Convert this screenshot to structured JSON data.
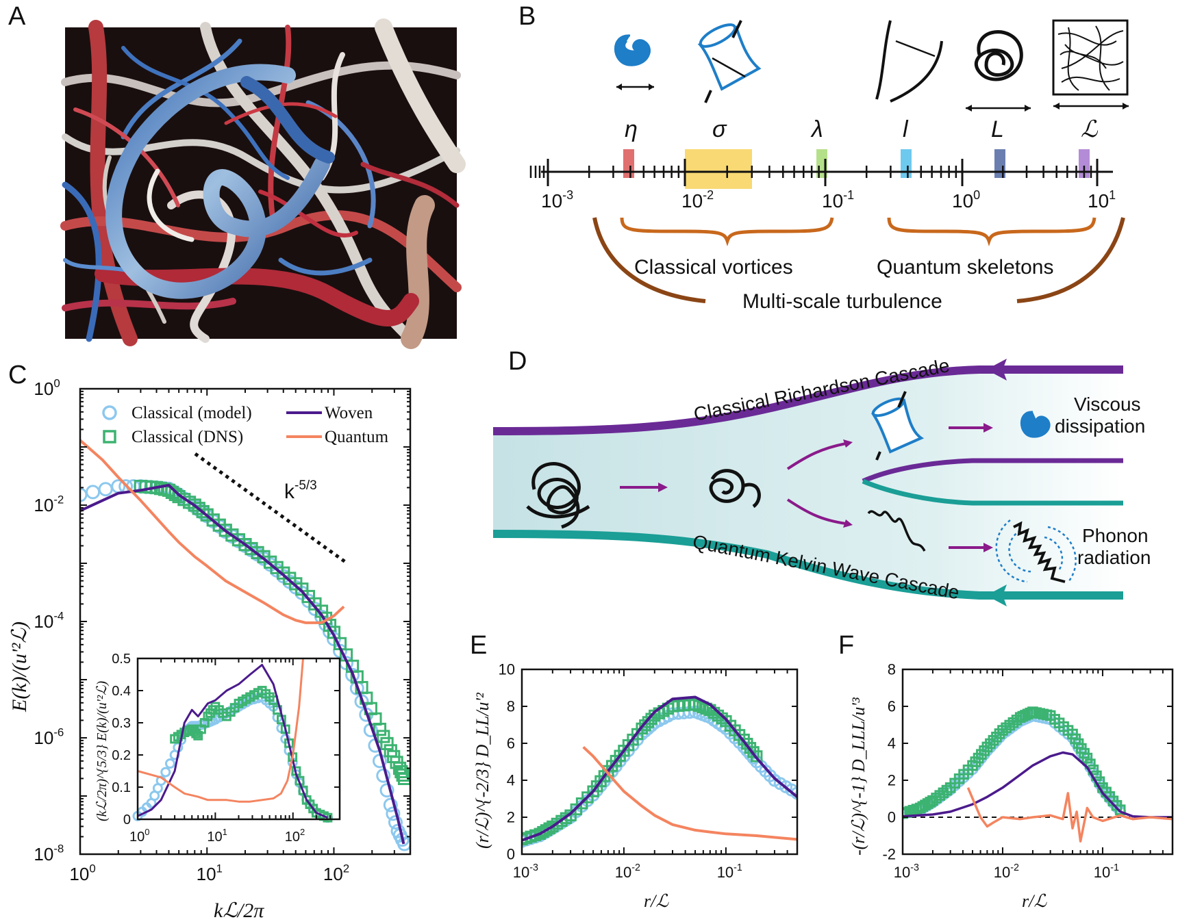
{
  "panels": {
    "A": "A",
    "B": "B",
    "C": "C",
    "D": "D",
    "E": "E",
    "F": "F"
  },
  "scale_diagram": {
    "symbols": [
      "η",
      "σ",
      "λ",
      "l",
      "L",
      "ℒ"
    ],
    "tick_labels": [
      "10",
      "10",
      "10",
      "10",
      "10"
    ],
    "tick_exponents": [
      "-3",
      "-2",
      "-1",
      "0",
      "1"
    ],
    "classical_label": "Classical vortices",
    "quantum_label": "Quantum skeletons",
    "multiscale_label": "Multi-scale turbulence",
    "colors": {
      "eta": "#e07070",
      "sigma": "#f7d25a",
      "lambda": "#b5e08a",
      "l": "#6ec9ee",
      "L": "#6a7fb0",
      "calL": "#b48bd6",
      "brace": "#c8681c",
      "outer_brace": "#8b4515"
    }
  },
  "cascade_diagram": {
    "classical_label": "Classical Richardson Cascade",
    "quantum_label": "Quantum Kelvin Wave Cascade",
    "viscous_1": "Viscous",
    "viscous_2": "dissipation",
    "phonon_1": "Phonon",
    "phonon_2": "radiation",
    "colors": {
      "classical": "#6a2a96",
      "quantum": "#1a9e96",
      "arrow": "#8a1a8a",
      "fill": "#c9e3e6"
    }
  },
  "chart_data": [
    {
      "panel": "C",
      "type": "line",
      "log_x": true,
      "log_y": true,
      "xlabel": "kℒ/2π",
      "ylabel": "E(k)/(u'²ℒ)",
      "xlim": [
        1,
        400
      ],
      "ylim": [
        1e-08,
        1
      ],
      "xticks": [
        "10",
        "10",
        "10"
      ],
      "xtick_exp": [
        "0",
        "1",
        "2"
      ],
      "yticks": [
        "10",
        "10",
        "10",
        "10",
        "10"
      ],
      "ytick_exp": [
        "-8",
        "-6",
        "-4",
        "-2",
        "0"
      ],
      "annotation": "k",
      "annotation_exp": "-5/3",
      "legend": [
        "Classical (model)",
        "Woven",
        "Classical (DNS)",
        "Quantum"
      ],
      "series": [
        {
          "name": "Classical (model)",
          "marker": "circle",
          "color": "#8cc8ee",
          "x": [
            1,
            2,
            3,
            4,
            5,
            6,
            8,
            10,
            14,
            20,
            28,
            40,
            56,
            80,
            100,
            140,
            180,
            230,
            280,
            320,
            360
          ],
          "y": [
            0.015,
            0.021,
            0.021,
            0.02,
            0.019,
            0.015,
            0.0095,
            0.0065,
            0.0035,
            0.002,
            0.0012,
            0.0006,
            0.00031,
            0.00012,
            5e-05,
            1.2e-05,
            2.5e-06,
            4e-07,
            7e-08,
            2.5e-08,
            1.5e-08
          ]
        },
        {
          "name": "Classical (DNS)",
          "marker": "square",
          "color": "#3cb371",
          "x": [
            3,
            4,
            5,
            6,
            8,
            10,
            14,
            20,
            28,
            40,
            56,
            80,
            100,
            140,
            180,
            230,
            280,
            330,
            360
          ],
          "y": [
            0.021,
            0.02,
            0.018,
            0.014,
            0.01,
            0.0068,
            0.0037,
            0.0021,
            0.0013,
            0.00068,
            0.00036,
            0.00015,
            6.5e-05,
            1.7e-05,
            4.8e-06,
            1.4e-06,
            6e-07,
            3e-07,
            2e-07
          ]
        },
        {
          "name": "Woven",
          "marker": "line",
          "color": "#4b1a8c",
          "x": [
            1,
            2,
            3,
            5,
            6,
            8,
            10,
            14,
            20,
            28,
            40,
            56,
            80,
            100,
            140,
            180,
            230,
            280,
            320,
            355
          ],
          "y": [
            0.008,
            0.016,
            0.018,
            0.022,
            0.015,
            0.0098,
            0.0066,
            0.0036,
            0.0021,
            0.0012,
            0.00063,
            0.00033,
            0.00013,
            5.8e-05,
            1.3e-05,
            2.8e-06,
            6e-07,
            1.2e-07,
            4e-08,
            1.5e-08
          ]
        },
        {
          "name": "Quantum",
          "marker": "line",
          "color": "#f4845f",
          "x": [
            1,
            1.5,
            2,
            3,
            4,
            5,
            6,
            8,
            10,
            14,
            20,
            28,
            40,
            50,
            60,
            80,
            100,
            120
          ],
          "y": [
            0.13,
            0.06,
            0.03,
            0.012,
            0.006,
            0.0035,
            0.0023,
            0.0013,
            0.0009,
            0.0005,
            0.00032,
            0.00021,
            0.00013,
            0.000105,
            9.5e-05,
            9.5e-05,
            0.000125,
            0.00018
          ]
        }
      ]
    },
    {
      "panel": "C-inset",
      "type": "line",
      "log_x": true,
      "xlabel": "",
      "ylabel": "(kℒ/2π)^{5/3} E(k)/(u'²ℒ)",
      "xlim": [
        1,
        400
      ],
      "ylim": [
        0,
        0.5
      ],
      "xticks": [
        "10",
        "10",
        "10"
      ],
      "xtick_exp": [
        "0",
        "1",
        "2"
      ],
      "yticks": [
        "0",
        "0.1",
        "0.2",
        "0.3",
        "0.4",
        "0.5"
      ],
      "series": [
        {
          "name": "Classical (model)",
          "marker": "circle",
          "color": "#8cc8ee",
          "x": [
            1,
            1.5,
            2,
            3,
            4,
            5,
            6,
            8,
            10,
            14,
            20,
            28,
            40,
            56,
            80,
            110,
            150,
            200,
            280
          ],
          "y": [
            0.01,
            0.05,
            0.12,
            0.2,
            0.27,
            0.29,
            0.29,
            0.3,
            0.31,
            0.33,
            0.35,
            0.37,
            0.38,
            0.35,
            0.25,
            0.14,
            0.06,
            0.02,
            0.005
          ]
        },
        {
          "name": "Classical (DNS)",
          "marker": "square",
          "color": "#3cb371",
          "x": [
            3,
            4,
            5,
            6,
            8,
            10,
            14,
            20,
            28,
            40,
            56,
            80,
            110,
            150,
            200,
            280
          ],
          "y": [
            0.25,
            0.27,
            0.28,
            0.26,
            0.32,
            0.35,
            0.32,
            0.36,
            0.38,
            0.4,
            0.37,
            0.28,
            0.15,
            0.06,
            0.02,
            0.005
          ]
        },
        {
          "name": "Woven",
          "marker": "line",
          "color": "#4b1a8c",
          "x": [
            1,
            1.5,
            2,
            3,
            4,
            5,
            6,
            8,
            10,
            14,
            20,
            28,
            40,
            56,
            80,
            110,
            150,
            200,
            280
          ],
          "y": [
            0.01,
            0.03,
            0.06,
            0.15,
            0.3,
            0.34,
            0.32,
            0.36,
            0.37,
            0.4,
            0.42,
            0.45,
            0.48,
            0.42,
            0.28,
            0.14,
            0.06,
            0.02,
            0.005
          ]
        },
        {
          "name": "Quantum",
          "marker": "line",
          "color": "#f4845f",
          "x": [
            1,
            2,
            3,
            4,
            6,
            8,
            10,
            14,
            20,
            28,
            40,
            56,
            70,
            85,
            100,
            120,
            135
          ],
          "y": [
            0.15,
            0.13,
            0.1,
            0.08,
            0.07,
            0.06,
            0.06,
            0.06,
            0.055,
            0.055,
            0.06,
            0.065,
            0.08,
            0.12,
            0.2,
            0.35,
            0.5
          ]
        }
      ]
    },
    {
      "panel": "E",
      "type": "line",
      "log_x": true,
      "xlabel": "r/ℒ",
      "ylabel": "(r/ℒ)^{-2/3} D_LL/u'²",
      "xlim": [
        0.001,
        0.5
      ],
      "ylim": [
        0,
        10
      ],
      "xticks": [
        "10",
        "10",
        "10"
      ],
      "xtick_exp": [
        "-3",
        "-2",
        "-1"
      ],
      "yticks": [
        "0",
        "2",
        "4",
        "6",
        "8",
        "10"
      ],
      "series": [
        {
          "name": "Classical (model)",
          "marker": "circle",
          "color": "#8cc8ee",
          "x": [
            0.001,
            0.0015,
            0.002,
            0.003,
            0.005,
            0.007,
            0.01,
            0.015,
            0.02,
            0.03,
            0.05,
            0.07,
            0.1,
            0.15,
            0.2,
            0.3,
            0.5
          ],
          "y": [
            0.7,
            1.0,
            1.4,
            2.0,
            3.2,
            4.2,
            5.3,
            6.5,
            7.1,
            7.6,
            7.7,
            7.4,
            6.8,
            5.8,
            5.0,
            4.0,
            3.3
          ]
        },
        {
          "name": "Classical (DNS)",
          "marker": "square",
          "color": "#3cb371",
          "x": [
            0.001,
            0.0015,
            0.002,
            0.003,
            0.005,
            0.007,
            0.01,
            0.015,
            0.02,
            0.03,
            0.05,
            0.07,
            0.1,
            0.15,
            0.2
          ],
          "y": [
            0.8,
            1.1,
            1.5,
            2.1,
            3.4,
            4.5,
            5.6,
            6.8,
            7.5,
            8.0,
            8.1,
            7.8,
            7.2,
            6.2,
            5.3
          ]
        },
        {
          "name": "Woven",
          "marker": "line",
          "color": "#4b1a8c",
          "x": [
            0.001,
            0.0015,
            0.002,
            0.003,
            0.005,
            0.007,
            0.01,
            0.015,
            0.02,
            0.03,
            0.05,
            0.07,
            0.1,
            0.15,
            0.2,
            0.3,
            0.5
          ],
          "y": [
            0.75,
            1.1,
            1.5,
            2.2,
            3.4,
            4.5,
            5.6,
            6.9,
            7.7,
            8.4,
            8.5,
            8.1,
            7.3,
            6.1,
            5.2,
            4.1,
            3.1
          ]
        },
        {
          "name": "Quantum",
          "marker": "line",
          "color": "#f4845f",
          "x": [
            0.004,
            0.005,
            0.006,
            0.008,
            0.01,
            0.015,
            0.02,
            0.03,
            0.05,
            0.07,
            0.1,
            0.2,
            0.5
          ],
          "y": [
            5.8,
            5.3,
            4.8,
            4.0,
            3.4,
            2.6,
            2.1,
            1.6,
            1.3,
            1.2,
            1.1,
            1.0,
            0.8
          ]
        }
      ]
    },
    {
      "panel": "F",
      "type": "line",
      "log_x": true,
      "xlabel": "r/ℒ",
      "ylabel": "-(r/ℒ)^{-1} D_LLL/u'³",
      "xlim": [
        0.001,
        0.5
      ],
      "ylim": [
        -2,
        8
      ],
      "xticks": [
        "10",
        "10",
        "10"
      ],
      "xtick_exp": [
        "-3",
        "-2",
        "-1"
      ],
      "yticks": [
        "-2",
        "0",
        "2",
        "4",
        "6",
        "8"
      ],
      "series": [
        {
          "name": "Classical (model)",
          "marker": "circle",
          "color": "#8cc8ee",
          "x": [
            0.001,
            0.0015,
            0.002,
            0.003,
            0.005,
            0.007,
            0.01,
            0.015,
            0.02,
            0.03,
            0.05,
            0.07,
            0.1,
            0.15
          ],
          "y": [
            0.2,
            0.4,
            0.8,
            1.5,
            2.6,
            3.6,
            4.5,
            5.2,
            5.5,
            5.3,
            4.3,
            3.0,
            1.5,
            0.3
          ]
        },
        {
          "name": "Classical (DNS)",
          "marker": "square",
          "color": "#3cb371",
          "x": [
            0.001,
            0.0015,
            0.002,
            0.003,
            0.005,
            0.007,
            0.01,
            0.015,
            0.02,
            0.03,
            0.05,
            0.07,
            0.1,
            0.15
          ],
          "y": [
            0.2,
            0.5,
            0.9,
            1.6,
            2.8,
            3.8,
            4.7,
            5.4,
            5.7,
            5.5,
            4.5,
            3.2,
            1.6,
            0.4
          ]
        },
        {
          "name": "Woven",
          "marker": "line",
          "color": "#4b1a8c",
          "x": [
            0.001,
            0.002,
            0.003,
            0.005,
            0.007,
            0.01,
            0.015,
            0.02,
            0.03,
            0.04,
            0.05,
            0.07,
            0.1,
            0.15,
            0.2,
            0.3,
            0.5
          ],
          "y": [
            0.05,
            0.15,
            0.3,
            0.7,
            1.1,
            1.6,
            2.3,
            2.8,
            3.3,
            3.5,
            3.4,
            2.7,
            1.3,
            0.3,
            0.05,
            0.0,
            0.0
          ]
        },
        {
          "name": "Quantum",
          "marker": "line",
          "color": "#f4845f",
          "x": [
            0.0045,
            0.006,
            0.007,
            0.008,
            0.01,
            0.015,
            0.02,
            0.03,
            0.04,
            0.045,
            0.05,
            0.055,
            0.06,
            0.07,
            0.08,
            0.1,
            0.15,
            0.2,
            0.3,
            0.5
          ],
          "y": [
            1.6,
            0.0,
            -0.5,
            -0.3,
            0.0,
            -0.1,
            0.0,
            0.1,
            -0.1,
            1.3,
            -0.6,
            0.3,
            -1.3,
            0.5,
            0.0,
            -0.2,
            0.1,
            -0.1,
            0.0,
            -0.1
          ]
        }
      ]
    }
  ]
}
